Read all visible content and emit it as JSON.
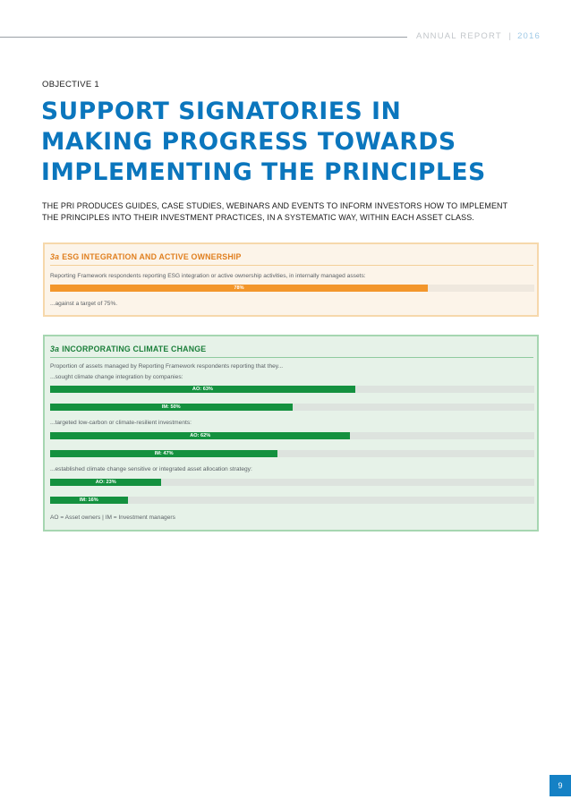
{
  "header": {
    "report_label": "ANNUAL REPORT",
    "separator": "|",
    "year": "2016"
  },
  "objective_label": "OBJECTIVE 1",
  "title_lines": [
    "SUPPORT SIGNATORIES IN",
    "MAKING PROGRESS TOWARDS",
    "IMPLEMENTING THE PRINCIPLES"
  ],
  "intro_lines": [
    "THE PRI PRODUCES GUIDES, CASE STUDIES, WEBINARS AND EVENTS TO INFORM INVESTORS HOW TO IMPLEMENT",
    "THE PRINCIPLES INTO THEIR INVESTMENT PRACTICES, IN A SYSTEMATIC WAY, WITHIN EACH ASSET CLASS."
  ],
  "esg_panel": {
    "prefix": "3a",
    "title": "ESG INTEGRATION AND ACTIVE OWNERSHIP",
    "description": "Reporting Framework respondents reporting ESG integration or active ownership activities, in internally managed assets:",
    "bar": {
      "label": "78%",
      "value": 78
    },
    "target_note": "...against a target of 75%."
  },
  "climate_panel": {
    "prefix": "3a",
    "title": "INCORPORATING CLIMATE CHANGE",
    "intro": "Proportion of assets managed by Reporting Framework respondents reporting that they...",
    "groups": [
      {
        "label": "...sought climate change integration by companies:",
        "bars": [
          {
            "label": "AO: 63%",
            "value": 63
          },
          {
            "label": "IM: 50%",
            "value": 50
          }
        ]
      },
      {
        "label": "...targeted low-carbon or climate-resilient investments:",
        "bars": [
          {
            "label": "AO: 62%",
            "value": 62
          },
          {
            "label": "IM: 47%",
            "value": 47
          }
        ]
      },
      {
        "label": "...established climate change sensitive or integrated asset allocation strategy:",
        "bars": [
          {
            "label": "AO: 23%",
            "value": 23
          },
          {
            "label": "IM: 16%",
            "value": 16
          }
        ]
      }
    ],
    "legend": "AO = Asset owners | IM = Investment managers"
  },
  "page_number": "9",
  "colors": {
    "brand_blue": "#0b76bd",
    "esg_orange": "#f3962b",
    "climate_green": "#14913f"
  }
}
